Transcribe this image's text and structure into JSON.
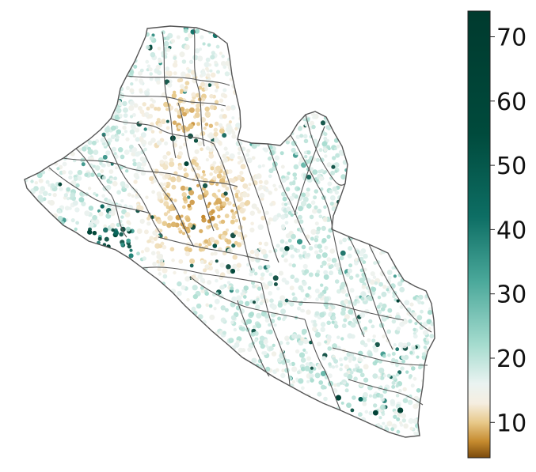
{
  "colorbar": {
    "min": 4.5,
    "max": 74,
    "ticks": [
      {
        "value": 10,
        "label": "10"
      },
      {
        "value": 20,
        "label": "20"
      },
      {
        "value": 30,
        "label": "30"
      },
      {
        "value": 40,
        "label": "40"
      },
      {
        "value": 50,
        "label": "50"
      },
      {
        "value": 60,
        "label": "60"
      },
      {
        "value": 70,
        "label": "70"
      }
    ],
    "colors": [
      {
        "value": 4.5,
        "color": "#7a4a0c"
      },
      {
        "value": 7,
        "color": "#c58a2e"
      },
      {
        "value": 10,
        "color": "#e8c98a"
      },
      {
        "value": 13,
        "color": "#f5eee1"
      },
      {
        "value": 16,
        "color": "#eaf3f1"
      },
      {
        "value": 22,
        "color": "#a6dccf"
      },
      {
        "value": 32,
        "color": "#4aa89a"
      },
      {
        "value": 42,
        "color": "#0d6e64"
      },
      {
        "value": 55,
        "color": "#004a3c"
      },
      {
        "value": 74,
        "color": "#003a2e"
      }
    ]
  },
  "map": {
    "border_color": "#555555",
    "district_line_color": "#555555"
  }
}
